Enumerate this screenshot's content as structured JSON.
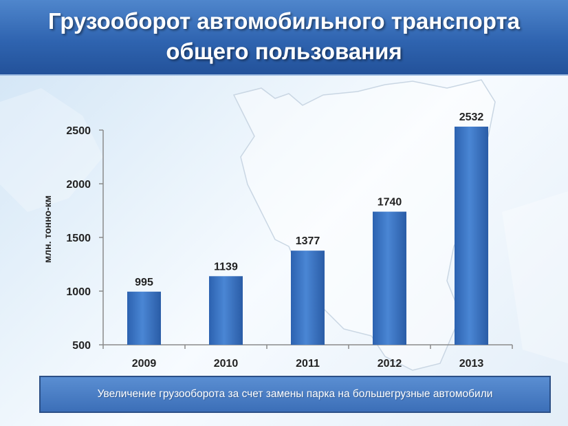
{
  "header": {
    "title_line1": "Грузооборот автомобильного транспорта",
    "title_line2": "общего пользования"
  },
  "colors": {
    "header": "#2f64b0",
    "bar": "#3a74c6",
    "footer": "#4a7fc8"
  },
  "chart_data": {
    "type": "bar",
    "categories": [
      "2009",
      "2010",
      "2011",
      "2012",
      "2013"
    ],
    "values": [
      995,
      1139,
      1377,
      1740,
      2532
    ],
    "ylabel": "млн. тонно-км",
    "xlabel": "",
    "ylim": [
      500,
      2500
    ],
    "yticks": [
      500,
      1000,
      1500,
      2000,
      2500
    ],
    "grid": false,
    "data_labels": true
  },
  "footer": {
    "text": "Увеличение грузооборота за счет замены парка на большегрузные автомобили"
  }
}
